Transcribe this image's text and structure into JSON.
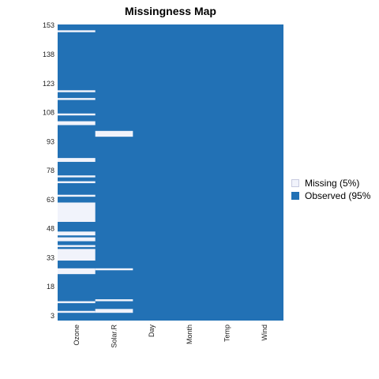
{
  "chart_data": {
    "type": "heatmap",
    "title": "Missingness Map",
    "xlabel": "",
    "ylabel": "",
    "columns": [
      "Ozone",
      "Solar.R",
      "Day",
      "Month",
      "Temp",
      "Wind"
    ],
    "row_count": 153,
    "y_ticks": [
      3,
      18,
      33,
      48,
      63,
      78,
      93,
      108,
      123,
      138,
      153
    ],
    "y_tick_labels": [
      "3",
      "18",
      "33",
      "48",
      "63",
      "78",
      "93",
      "108",
      "123",
      "138",
      "153"
    ],
    "missing_rows": {
      "Ozone": [
        5,
        10,
        25,
        26,
        27,
        32,
        33,
        34,
        35,
        36,
        37,
        39,
        42,
        43,
        45,
        46,
        52,
        53,
        54,
        55,
        56,
        57,
        58,
        59,
        60,
        61,
        65,
        72,
        75,
        83,
        84,
        102,
        103,
        107,
        115,
        119,
        150
      ],
      "Solar.R": [
        5,
        6,
        11,
        27,
        96,
        97,
        98
      ]
    },
    "legend": [
      {
        "label": "Missing (5%)",
        "color": "#f1f3fb"
      },
      {
        "label": "Observed (95%",
        "color": "#2271b5"
      }
    ],
    "legend_position": "right",
    "colors": {
      "missing": "#f1f3fb",
      "observed": "#2271b5"
    }
  }
}
